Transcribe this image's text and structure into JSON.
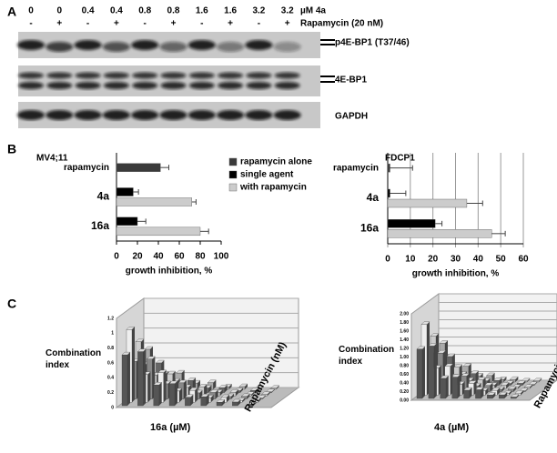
{
  "panel_a": {
    "letter": "A",
    "doses": [
      "0",
      "0",
      "0.4",
      "0.4",
      "0.8",
      "0.8",
      "1.6",
      "1.6",
      "3.2",
      "3.2"
    ],
    "dose_unit": "µM 4a",
    "rapamycin": [
      "-",
      "+",
      "-",
      "+",
      "-",
      "+",
      "-",
      "+",
      "-",
      "+"
    ],
    "rapamycin_label": "Rapamycin (20 nM)",
    "blots": [
      "p4E-BP1 (T37/46)",
      "4E-BP1",
      "GAPDH"
    ]
  },
  "panel_b": {
    "letter": "B",
    "charts": [
      {
        "type": "bar",
        "title": "MV4;11",
        "categories": [
          "rapamycin",
          "4a",
          "16a"
        ],
        "series": [
          {
            "name": "rapamycin alone",
            "color": "#3a3a3a",
            "values": [
              42,
              null,
              null
            ],
            "errors": [
              8,
              null,
              null
            ]
          },
          {
            "name": "single agent",
            "color": "#000000",
            "values": [
              null,
              16,
              20
            ],
            "errors": [
              null,
              5,
              8
            ]
          },
          {
            "name": "with rapamycin",
            "color": "#cccccc",
            "values": [
              null,
              72,
              80
            ],
            "errors": [
              null,
              4,
              8
            ]
          }
        ],
        "xlim": [
          0,
          100
        ],
        "xticks": [
          0,
          20,
          40,
          60,
          80,
          100
        ],
        "xlabel": "growth inhibition, %",
        "grid": false,
        "legend": true
      },
      {
        "type": "bar",
        "title": "FDCP1",
        "categories": [
          "rapamycin",
          "4a",
          "16a"
        ],
        "series": [
          {
            "name": "rapamycin alone",
            "color": "#3a3a3a",
            "values": [
              1,
              null,
              null
            ],
            "errors": [
              10,
              null,
              null
            ]
          },
          {
            "name": "single agent",
            "color": "#000000",
            "values": [
              null,
              1,
              21
            ],
            "errors": [
              null,
              7,
              3
            ]
          },
          {
            "name": "with rapamycin",
            "color": "#cccccc",
            "values": [
              null,
              35,
              46
            ],
            "errors": [
              null,
              7,
              6
            ]
          }
        ],
        "xlim": [
          0,
          60
        ],
        "xticks": [
          0,
          10,
          20,
          30,
          40,
          50,
          60
        ],
        "xlabel": "growth inhibition, %",
        "grid": true,
        "legend": false
      }
    ]
  },
  "panel_c": {
    "letter": "C",
    "charts": [
      {
        "ylabel": "Combination index",
        "xlabel": "16a (µM)",
        "zlabel": "Rapamycin (nM)",
        "ylim": [
          0,
          1.2
        ],
        "yticks": [
          0,
          0.2,
          0.4,
          0.6,
          0.8,
          1,
          1.2
        ]
      },
      {
        "ylabel": "Combination index",
        "xlabel": "4a (µM)",
        "zlabel": "Rapamycin (nM)",
        "ylim": [
          0,
          2
        ],
        "yticks": [
          {
            "value": 0,
            "label": "0.00"
          },
          {
            "value": 0.2,
            "label": "0.20"
          },
          {
            "value": 0.4,
            "label": "0.40"
          },
          {
            "value": 0.6,
            "label": "0.60"
          },
          {
            "value": 0.8,
            "label": "0.80"
          },
          {
            "value": 1,
            "label": "1.00"
          },
          {
            "value": 1.2,
            "label": "1.20"
          },
          {
            "value": 1.4,
            "label": "1.40"
          },
          {
            "value": 1.6,
            "label": "1.60"
          },
          {
            "value": 1.8,
            "label": "1.80"
          },
          {
            "value": 2,
            "label": "2.00"
          }
        ]
      }
    ]
  }
}
